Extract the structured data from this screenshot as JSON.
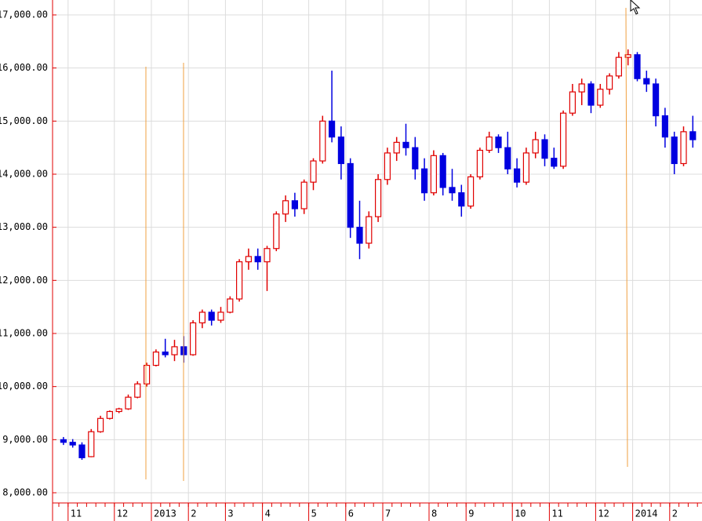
{
  "chart_data": {
    "type": "candlestick",
    "categories": [
      null,
      "11",
      null,
      null,
      null,
      null,
      "12",
      null,
      null,
      null,
      "2013",
      null,
      null,
      null,
      "2",
      null,
      null,
      null,
      "3",
      null,
      null,
      null,
      "4",
      null,
      null,
      null,
      null,
      "5",
      null,
      null,
      null,
      "6",
      null,
      null,
      null,
      "7",
      null,
      null,
      null,
      null,
      "8",
      null,
      null,
      null,
      "9",
      null,
      null,
      null,
      null,
      "10",
      null,
      null,
      null,
      "11",
      null,
      null,
      null,
      null,
      "12",
      null,
      null,
      null,
      "2014",
      null,
      null,
      null,
      "2",
      null,
      null
    ],
    "open": [
      9000,
      8950,
      8900,
      8680,
      9150,
      9400,
      9530,
      9580,
      9800,
      10050,
      10400,
      10650,
      10600,
      10750,
      10600,
      11200,
      11400,
      11250,
      11400,
      11650,
      12350,
      12450,
      12350,
      12600,
      13250,
      13500,
      13350,
      13850,
      14250,
      15000,
      14700,
      14200,
      13000,
      12700,
      13200,
      13900,
      14400,
      14600,
      14500,
      14100,
      13650,
      14350,
      13750,
      13650,
      13400,
      13950,
      14450,
      14700,
      14500,
      14100,
      13850,
      14400,
      14650,
      14300,
      14150,
      15150,
      15550,
      15700,
      15300,
      15600,
      15850,
      16200,
      16250,
      15800,
      15700,
      15100,
      14700,
      14200,
      14800
    ],
    "high": [
      9050,
      9010,
      8950,
      9200,
      9450,
      9550,
      9600,
      9850,
      10100,
      10450,
      10700,
      10900,
      10880,
      10950,
      11250,
      11450,
      11450,
      11500,
      11700,
      12400,
      12600,
      12600,
      12650,
      13300,
      13600,
      13650,
      13900,
      14300,
      15100,
      15950,
      14900,
      14300,
      13500,
      13300,
      14000,
      14500,
      14700,
      14950,
      14700,
      14300,
      14450,
      14400,
      14100,
      13800,
      14000,
      14500,
      14800,
      14750,
      14800,
      14300,
      14500,
      14800,
      14750,
      14500,
      15200,
      15700,
      15800,
      15750,
      15700,
      15900,
      16300,
      16350,
      16300,
      15950,
      15800,
      15250,
      14800,
      14900,
      15100
    ],
    "low": [
      8900,
      8850,
      8620,
      8670,
      9130,
      9380,
      9500,
      9560,
      9780,
      10000,
      10380,
      10550,
      10480,
      10450,
      10580,
      11100,
      11150,
      11200,
      11380,
      11600,
      12200,
      12200,
      11800,
      12550,
      13100,
      13200,
      13250,
      13700,
      14200,
      14600,
      13900,
      12800,
      12400,
      12600,
      13100,
      13800,
      14250,
      14350,
      13900,
      13500,
      13600,
      13600,
      13500,
      13200,
      13350,
      13900,
      14400,
      14400,
      14000,
      13750,
      13800,
      14300,
      14150,
      14100,
      14100,
      15100,
      15300,
      15150,
      15250,
      15500,
      15800,
      16050,
      15750,
      15550,
      14900,
      14500,
      14000,
      14150,
      14500
    ],
    "close": [
      8950,
      8900,
      8660,
      9150,
      9400,
      9530,
      9580,
      9800,
      10050,
      10400,
      10650,
      10600,
      10750,
      10600,
      11200,
      11400,
      11250,
      11400,
      11650,
      12350,
      12450,
      12350,
      12600,
      13250,
      13500,
      13350,
      13850,
      14250,
      15000,
      14700,
      14200,
      13000,
      12700,
      13200,
      13900,
      14400,
      14600,
      14500,
      14100,
      13650,
      14350,
      13750,
      13650,
      13400,
      13950,
      14450,
      14700,
      14500,
      14100,
      13850,
      14400,
      14650,
      14300,
      14150,
      15150,
      15550,
      15700,
      15300,
      15600,
      15850,
      16200,
      16250,
      15800,
      15700,
      15100,
      14700,
      14200,
      14800,
      14650
    ],
    "up_color": "#e00000",
    "down_color": "#0000e0",
    "ylim": [
      8000,
      17000
    ],
    "yticks": [
      {
        "value": 8000,
        "label": "8,000.00"
      },
      {
        "value": 9000,
        "label": "9,000.00"
      },
      {
        "value": 10000,
        "label": "10,000.00"
      },
      {
        "value": 11000,
        "label": "11,000.00"
      },
      {
        "value": 12000,
        "label": "12,000.00"
      },
      {
        "value": 13000,
        "label": "13,000.00"
      },
      {
        "value": 14000,
        "label": "14,000.00"
      },
      {
        "value": 15000,
        "label": "15,000.00"
      },
      {
        "value": 16000,
        "label": "16,000.00"
      },
      {
        "value": 17000,
        "label": "17,000.00"
      }
    ],
    "grid": true
  }
}
